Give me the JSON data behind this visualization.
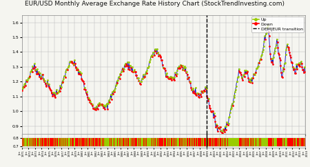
{
  "title": "EUR/USD Monthly Average Exchange Rate History Chart (StockTrendInvesting.com)",
  "title_fontsize": 6.5,
  "background_color": "#f5f5f0",
  "grid_color": "#bbbbbb",
  "line_color": "#0000bb",
  "up_color": "#99cc00",
  "down_color": "#ff0000",
  "transition_color": "#000000",
  "ylim_main": [
    0.85,
    1.65
  ],
  "yticks_main": [
    0.9,
    1.0,
    1.1,
    1.2,
    1.3,
    1.4,
    1.5,
    1.6
  ],
  "ylim_bar": [
    0.68,
    0.85
  ],
  "yticks_bar": [
    0.7,
    0.8
  ],
  "start_year": 1971,
  "end_year": 2014,
  "transition_year": 1999,
  "key_points": [
    [
      1971.0,
      1.14
    ],
    [
      1971.5,
      1.19
    ],
    [
      1972.0,
      1.22
    ],
    [
      1972.5,
      1.28
    ],
    [
      1973.0,
      1.3
    ],
    [
      1973.5,
      1.26
    ],
    [
      1974.0,
      1.24
    ],
    [
      1974.5,
      1.2
    ],
    [
      1975.0,
      1.18
    ],
    [
      1975.5,
      1.13
    ],
    [
      1976.0,
      1.11
    ],
    [
      1976.5,
      1.14
    ],
    [
      1977.0,
      1.16
    ],
    [
      1977.5,
      1.24
    ],
    [
      1978.0,
      1.3
    ],
    [
      1978.5,
      1.33
    ],
    [
      1979.0,
      1.32
    ],
    [
      1979.5,
      1.28
    ],
    [
      1980.0,
      1.24
    ],
    [
      1980.5,
      1.17
    ],
    [
      1981.0,
      1.1
    ],
    [
      1981.5,
      1.05
    ],
    [
      1982.0,
      1.02
    ],
    [
      1982.5,
      1.04
    ],
    [
      1983.0,
      1.06
    ],
    [
      1983.5,
      1.04
    ],
    [
      1984.0,
      1.03
    ],
    [
      1984.5,
      1.09
    ],
    [
      1985.0,
      1.14
    ],
    [
      1985.5,
      1.2
    ],
    [
      1986.0,
      1.25
    ],
    [
      1986.5,
      1.3
    ],
    [
      1987.0,
      1.32
    ],
    [
      1987.5,
      1.3
    ],
    [
      1988.0,
      1.28
    ],
    [
      1988.5,
      1.24
    ],
    [
      1989.0,
      1.19
    ],
    [
      1989.5,
      1.23
    ],
    [
      1990.0,
      1.27
    ],
    [
      1990.5,
      1.34
    ],
    [
      1991.0,
      1.4
    ],
    [
      1991.5,
      1.41
    ],
    [
      1992.0,
      1.38
    ],
    [
      1992.5,
      1.3
    ],
    [
      1993.0,
      1.24
    ],
    [
      1993.5,
      1.22
    ],
    [
      1994.0,
      1.22
    ],
    [
      1994.5,
      1.27
    ],
    [
      1995.0,
      1.31
    ],
    [
      1995.5,
      1.29
    ],
    [
      1996.0,
      1.27
    ],
    [
      1996.5,
      1.2
    ],
    [
      1997.0,
      1.14
    ],
    [
      1997.5,
      1.12
    ],
    [
      1998.0,
      1.11
    ],
    [
      1998.5,
      1.13
    ],
    [
      1999.0,
      1.17
    ],
    [
      1999.25,
      1.08
    ],
    [
      1999.5,
      1.05
    ],
    [
      1999.75,
      1.01
    ],
    [
      2000.0,
      0.99
    ],
    [
      2000.25,
      0.95
    ],
    [
      2000.5,
      0.92
    ],
    [
      2000.75,
      0.89
    ],
    [
      2001.0,
      0.895
    ],
    [
      2001.25,
      0.87
    ],
    [
      2001.5,
      0.86
    ],
    [
      2001.75,
      0.885
    ],
    [
      2002.0,
      0.895
    ],
    [
      2002.25,
      0.915
    ],
    [
      2002.5,
      0.95
    ],
    [
      2002.75,
      1.01
    ],
    [
      2003.0,
      1.07
    ],
    [
      2003.25,
      1.1
    ],
    [
      2003.5,
      1.15
    ],
    [
      2003.75,
      1.22
    ],
    [
      2004.0,
      1.28
    ],
    [
      2004.25,
      1.24
    ],
    [
      2004.5,
      1.22
    ],
    [
      2004.75,
      1.25
    ],
    [
      2005.0,
      1.27
    ],
    [
      2005.25,
      1.26
    ],
    [
      2005.5,
      1.22
    ],
    [
      2005.75,
      1.2
    ],
    [
      2006.0,
      1.23
    ],
    [
      2006.25,
      1.25
    ],
    [
      2006.5,
      1.27
    ],
    [
      2006.75,
      1.3
    ],
    [
      2007.0,
      1.32
    ],
    [
      2007.25,
      1.35
    ],
    [
      2007.5,
      1.38
    ],
    [
      2007.75,
      1.45
    ],
    [
      2008.0,
      1.5
    ],
    [
      2008.25,
      1.56
    ],
    [
      2008.5,
      1.57
    ],
    [
      2008.75,
      1.38
    ],
    [
      2009.0,
      1.32
    ],
    [
      2009.25,
      1.37
    ],
    [
      2009.5,
      1.43
    ],
    [
      2009.75,
      1.48
    ],
    [
      2010.0,
      1.4
    ],
    [
      2010.25,
      1.34
    ],
    [
      2010.5,
      1.23
    ],
    [
      2010.75,
      1.28
    ],
    [
      2011.0,
      1.34
    ],
    [
      2011.25,
      1.44
    ],
    [
      2011.5,
      1.44
    ],
    [
      2011.75,
      1.38
    ],
    [
      2012.0,
      1.32
    ],
    [
      2012.25,
      1.3
    ],
    [
      2012.5,
      1.26
    ],
    [
      2012.75,
      1.3
    ],
    [
      2013.0,
      1.32
    ],
    [
      2013.5,
      1.32
    ],
    [
      2014.0,
      1.27
    ]
  ],
  "noise_seed": 7,
  "noise_scale": 0.012
}
